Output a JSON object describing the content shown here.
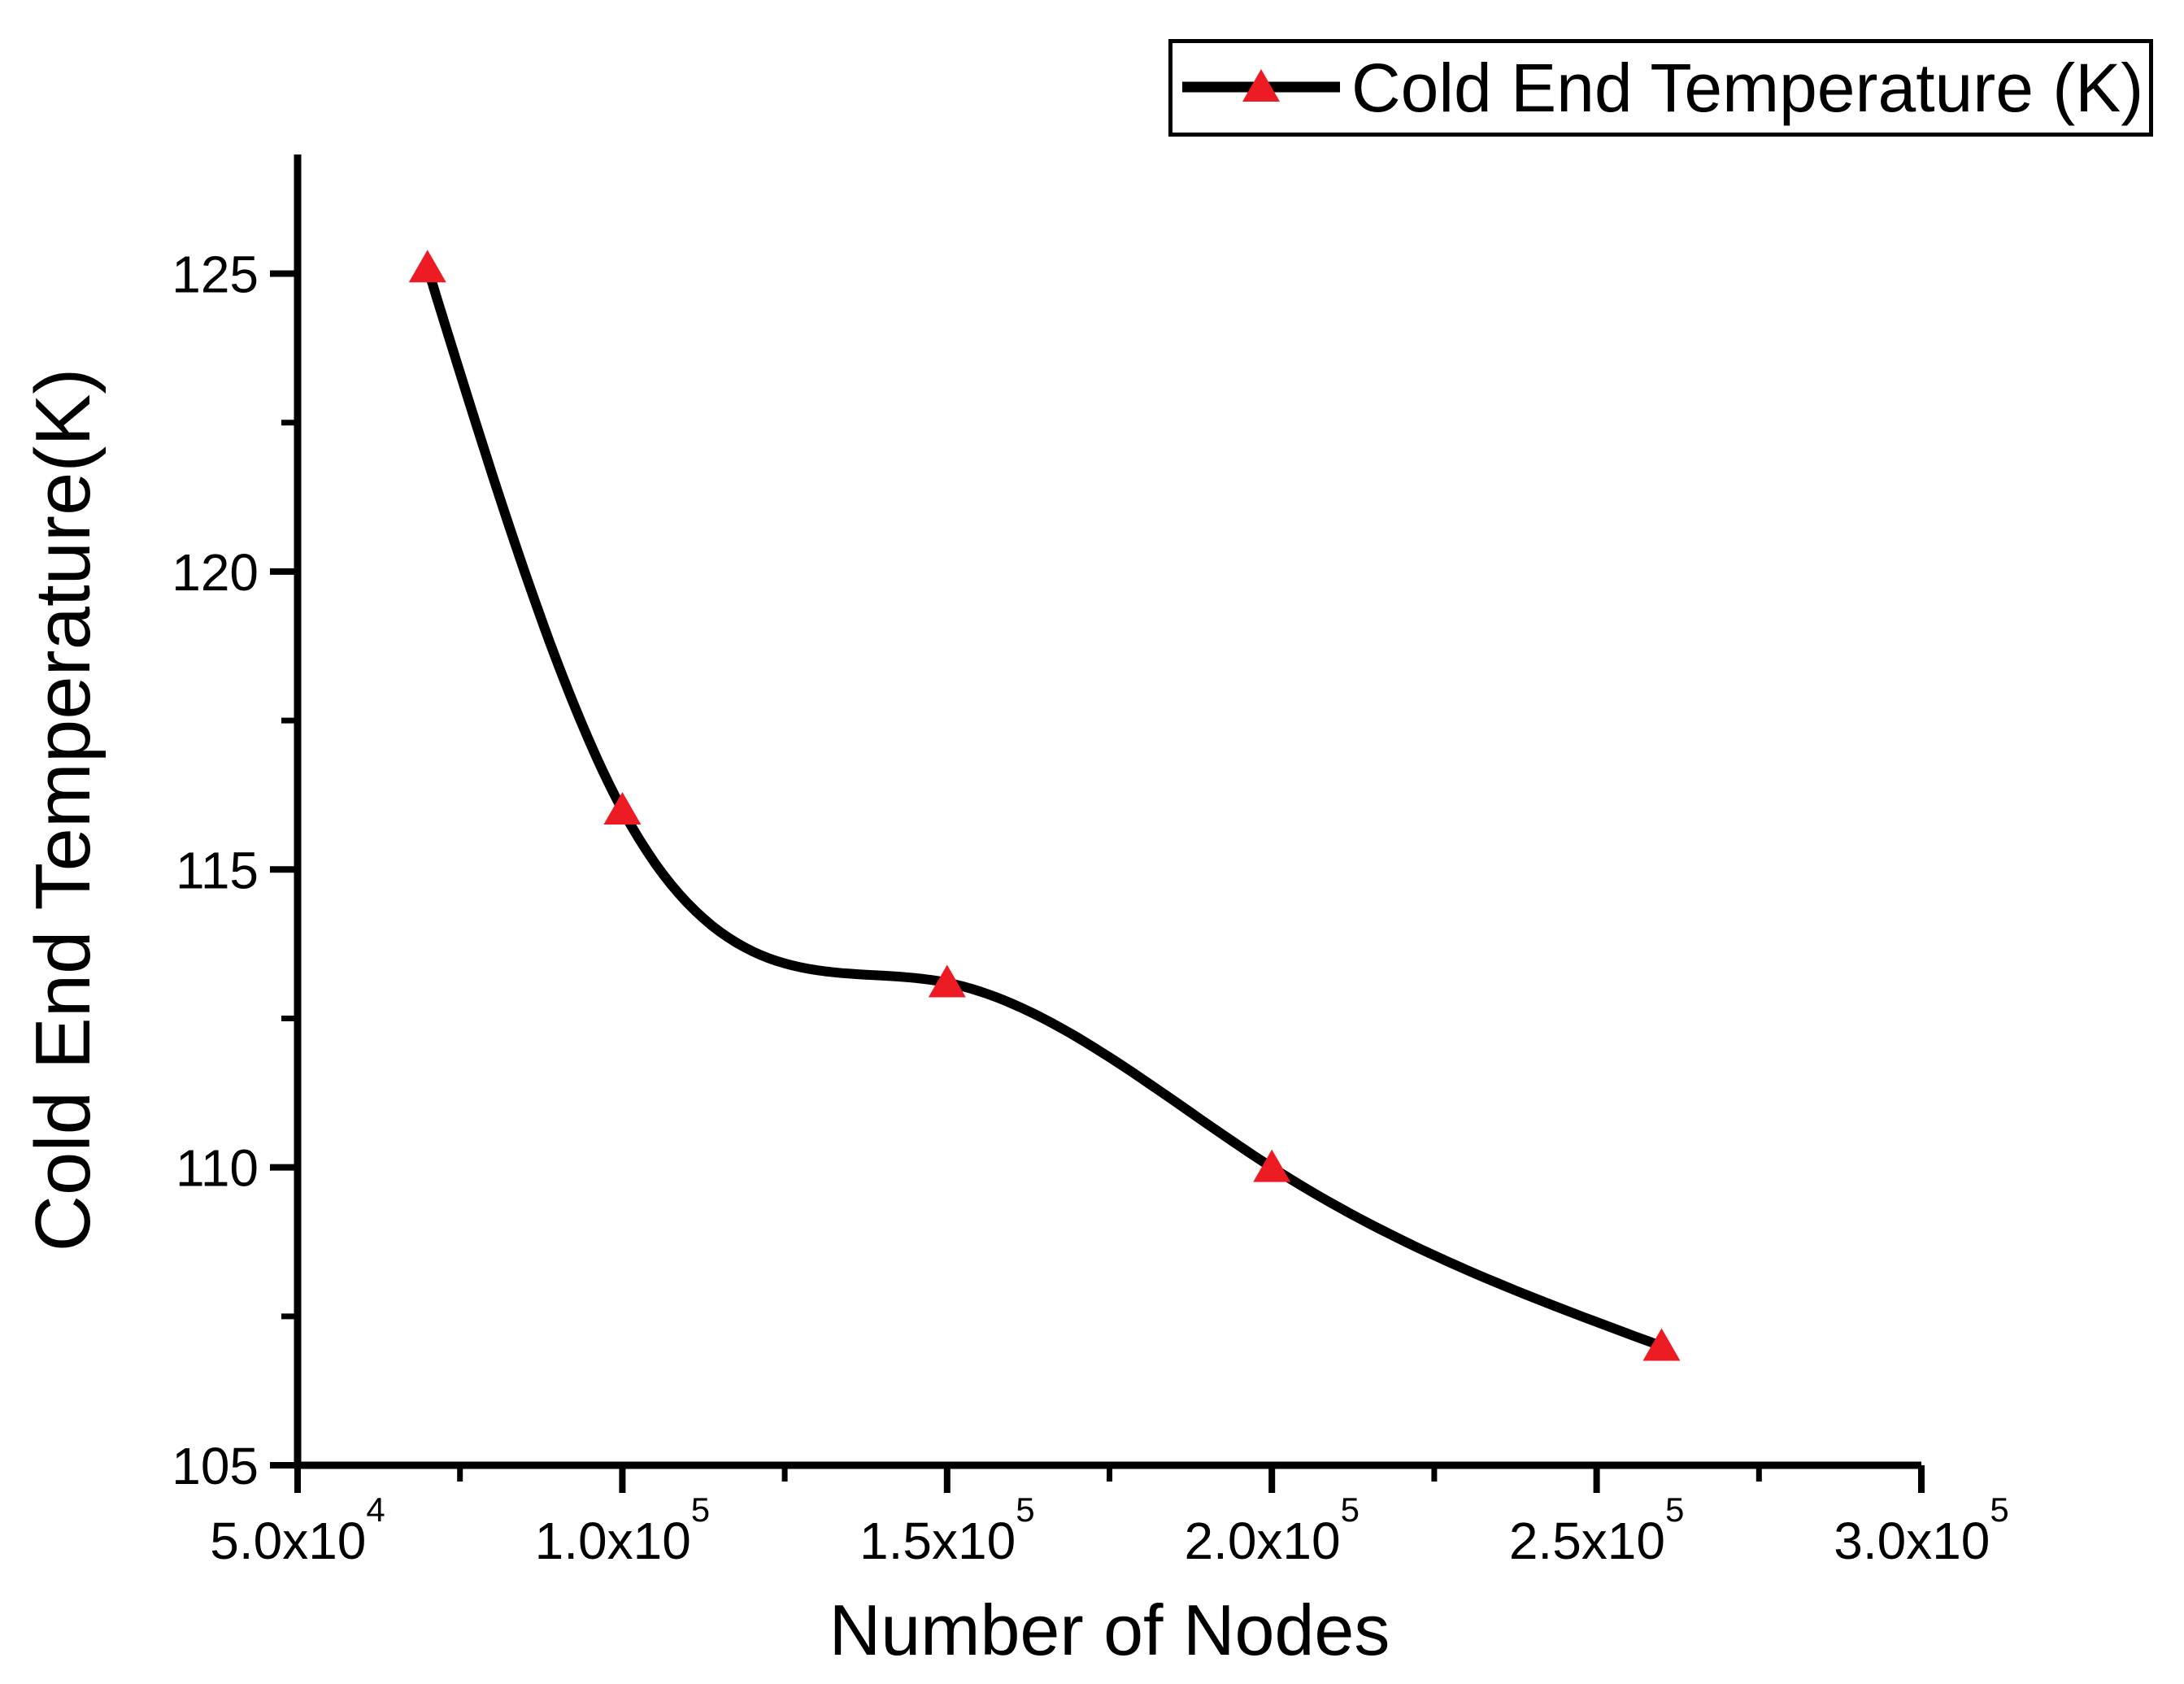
{
  "figure": {
    "background_color": "#ffffff",
    "axis_color": "#000000"
  },
  "chart_data": {
    "type": "line",
    "title": "",
    "xlabel": "Number of Nodes",
    "ylabel": "Cold End Temperature(K)",
    "xlim": [
      50000,
      300000
    ],
    "ylim": [
      105,
      127
    ],
    "grid": false,
    "x_major_ticks": [
      50000,
      100000,
      150000,
      200000,
      250000,
      300000
    ],
    "x_major_tick_labels": [
      "5.0x10^4",
      "1.0x10^5",
      "1.5x10^5",
      "2.0x10^5",
      "2.5x10^5",
      "3.0x10^5"
    ],
    "x_minor_ticks": [
      75000,
      125000,
      175000,
      225000,
      275000
    ],
    "y_major_ticks": [
      105,
      110,
      115,
      120,
      125
    ],
    "y_major_tick_labels": [
      "105",
      "110",
      "115",
      "120",
      "125"
    ],
    "y_minor_ticks": [
      107.5,
      112.5,
      117.5,
      122.5
    ],
    "legend": {
      "position": "top-right",
      "border": true,
      "entries": [
        {
          "label": "Cold End Temperature (K)",
          "marker": "triangle-up-icon",
          "marker_color": "#ed1c24",
          "line_color": "#000000"
        }
      ]
    },
    "series": [
      {
        "name": "Cold End Temperature (K)",
        "connection": "spline",
        "line_color": "#000000",
        "line_width": 12,
        "marker": "triangle-up-icon",
        "marker_color": "#ed1c24",
        "x": [
          70000,
          100000,
          150000,
          200000,
          260000
        ],
        "y": [
          125.1,
          116.0,
          113.1,
          110.0,
          107.0
        ]
      }
    ]
  }
}
